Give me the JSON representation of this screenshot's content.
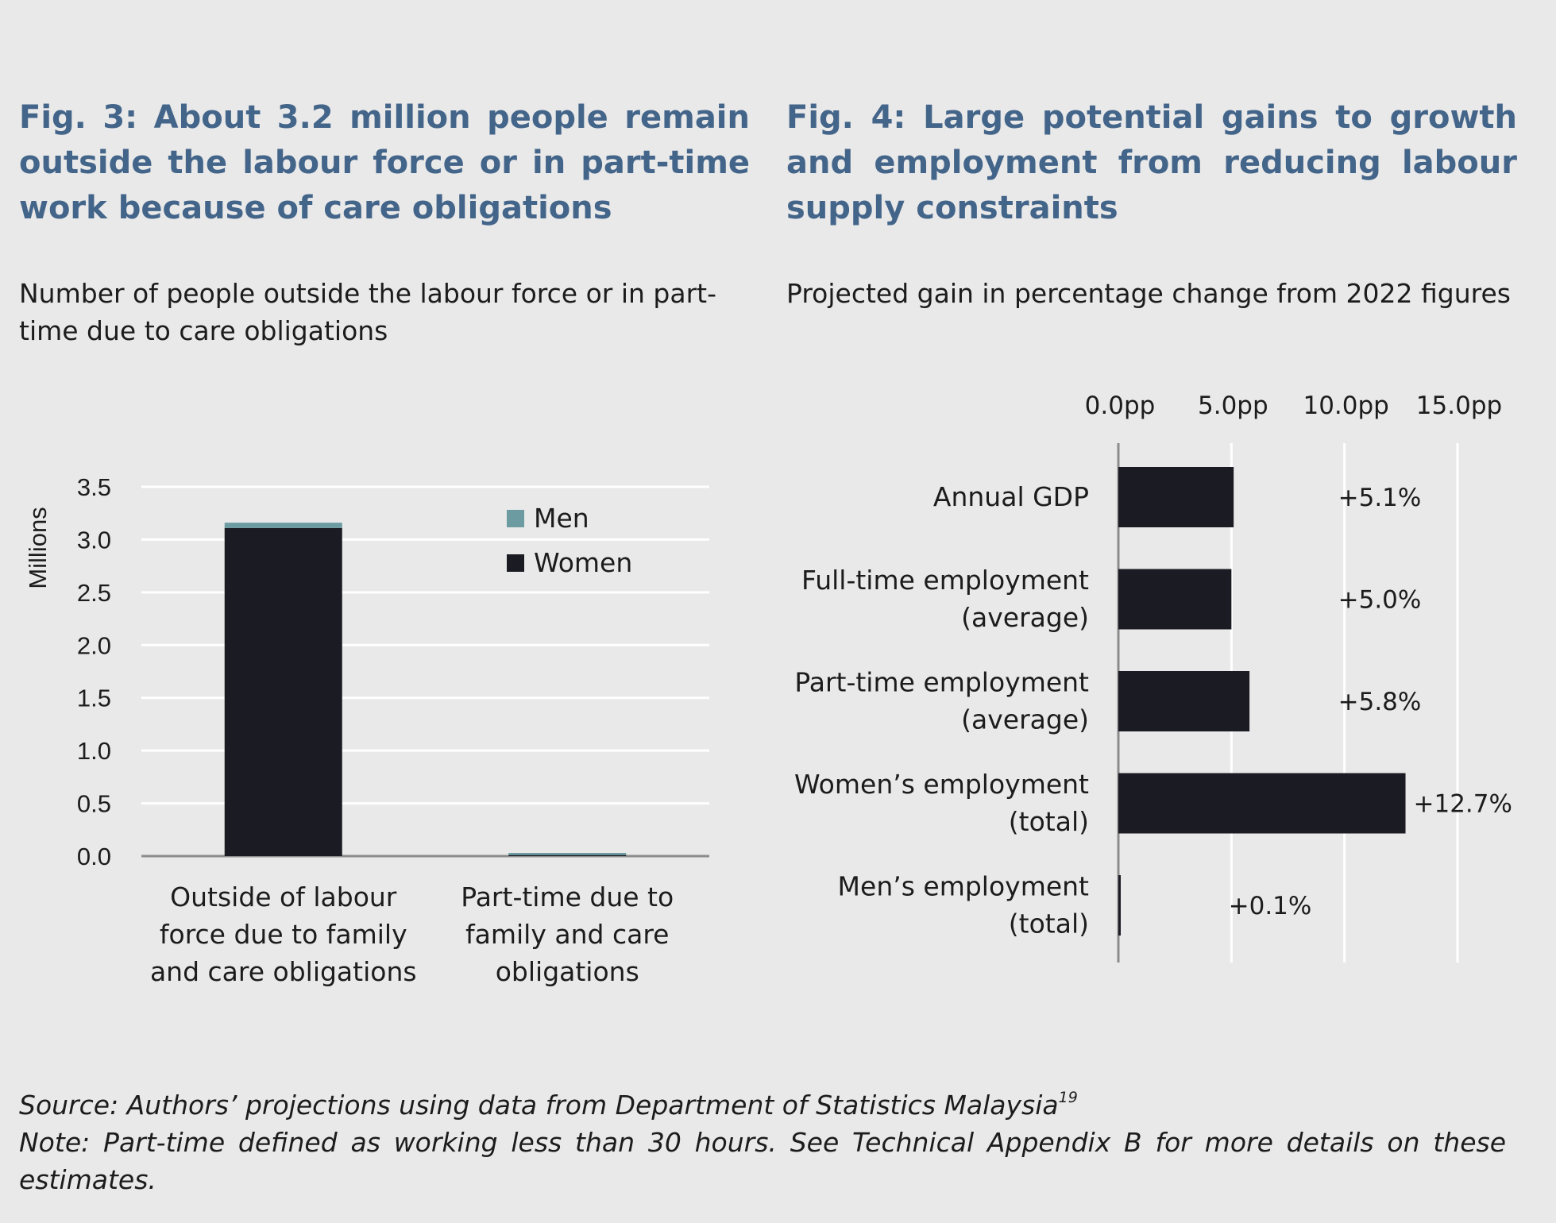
{
  "fig3": {
    "title": "Fig. 3: About 3.2 million people remain outside the labour force or in part-time work because of care obligations",
    "subtitle": "Number of people outside the labour force or in part-time due to care obligations"
  },
  "fig4": {
    "title": "Fig. 4: Large potential gains to growth and employment from reducing labour supply constraints",
    "subtitle": "Projected gain in percentage change from 2022 figures"
  },
  "footer": {
    "source": "Source: Authors’ projections using data from Department of Statistics Malaysia",
    "source_ref": "19",
    "note": "Note: Part-time defined as working less than 30 hours. See Technical Appendix B for more details on these estimates."
  },
  "chart_data": [
    {
      "type": "bar",
      "stacked": true,
      "title": "Fig. 3: About 3.2 million people remain outside the labour force or in part-time work because of care obligations",
      "subtitle": "Number of people outside the labour force or in part-time due to care obligations",
      "ylabel": "Millions",
      "xlabel": "",
      "ylim": [
        0,
        3.5
      ],
      "yticks": [
        "0.0",
        "0.5",
        "1.0",
        "1.5",
        "2.0",
        "2.5",
        "3.0",
        "3.5"
      ],
      "grid": true,
      "legend": "top-right",
      "categories": [
        [
          "Outside of labour",
          "force due to family",
          "and care obligations"
        ],
        [
          "Part-time due to",
          "family and care",
          "obligations"
        ]
      ],
      "series": [
        {
          "name": "Women",
          "color": "#1b1c23",
          "values": [
            3.11,
            0.01
          ]
        },
        {
          "name": "Men",
          "color": "#6c9ba2",
          "values": [
            0.05,
            0.02
          ]
        }
      ]
    },
    {
      "type": "bar",
      "orientation": "horizontal",
      "title": "Fig. 4: Large potential gains to growth and employment from reducing labour supply constraints",
      "subtitle": "Projected gain in percentage change from 2022 figures",
      "xlim": [
        0,
        15
      ],
      "xticks": [
        "0.0pp",
        "5.0pp",
        "10.0pp",
        "15.0pp"
      ],
      "grid": true,
      "color": "#1b1c23",
      "categories": [
        [
          "Annual GDP"
        ],
        [
          "Full-time employment",
          "(average)"
        ],
        [
          "Part-time employment",
          "(average)"
        ],
        [
          "Women’s employment",
          "(total)"
        ],
        [
          "Men’s employment",
          "(total)"
        ]
      ],
      "values": [
        5.1,
        5.0,
        5.8,
        12.7,
        0.1
      ],
      "data_labels": [
        "+5.1%",
        "+5.0%",
        "+5.8%",
        "+12.7%",
        "+0.1%"
      ]
    }
  ]
}
